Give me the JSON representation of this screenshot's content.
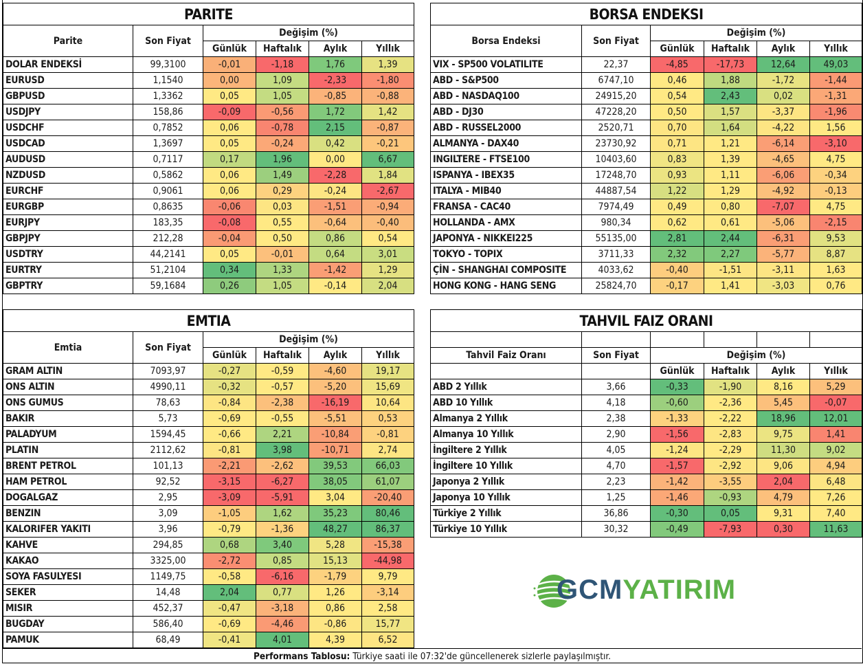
{
  "parite": {
    "title": "PARITE",
    "col_name": "Parite",
    "col_price": "Son Fiyat",
    "col_change": "Değişim (%)",
    "periods": [
      "Günlük",
      "Haftalık",
      "Aylık",
      "Yıllık"
    ],
    "rows": [
      {
        "name": "DOLAR ENDEKSİ",
        "price": "99,3100",
        "values": [
          "-0,01",
          "-1,18",
          "1,76",
          "1,39"
        ],
        "colors": [
          "#f9b078",
          "#f8696b",
          "#7fc97c",
          "#e6e282"
        ]
      },
      {
        "name": "EURUSD",
        "price": "1,1540",
        "values": [
          "0,00",
          "1,09",
          "-2,33",
          "-1,80"
        ],
        "colors": [
          "#fbb57a",
          "#c4dc82",
          "#f8696b",
          "#fa8e72"
        ]
      },
      {
        "name": "GBPUSD",
        "price": "1,3362",
        "values": [
          "0,05",
          "1,05",
          "-0,85",
          "-0,88"
        ],
        "colors": [
          "#ffe984",
          "#c4dc82",
          "#fbb37a",
          "#fbb37a"
        ]
      },
      {
        "name": "USDJPY",
        "price": "158,86",
        "values": [
          "-0,09",
          "-0,56",
          "1,72",
          "1,42"
        ],
        "colors": [
          "#f8696b",
          "#fa9a74",
          "#82c97c",
          "#e5e282"
        ]
      },
      {
        "name": "USDCHF",
        "price": "0,7852",
        "values": [
          "0,06",
          "-0,78",
          "2,15",
          "-0,87"
        ],
        "colors": [
          "#ffe984",
          "#f98570",
          "#63be7b",
          "#fbb37a"
        ]
      },
      {
        "name": "USDCAD",
        "price": "1,3697",
        "values": [
          "0,05",
          "-0,24",
          "0,42",
          "-0,21"
        ],
        "colors": [
          "#ffe984",
          "#fba877",
          "#d9e081",
          "#fdc67c"
        ]
      },
      {
        "name": "AUDUSD",
        "price": "0,7117",
        "values": [
          "0,17",
          "1,96",
          "0,00",
          "6,67"
        ],
        "colors": [
          "#c1da80",
          "#63be7b",
          "#ffe984",
          "#63be7b"
        ]
      },
      {
        "name": "NZDUSD",
        "price": "0,5862",
        "values": [
          "0,06",
          "1,49",
          "-2,28",
          "1,84"
        ],
        "colors": [
          "#ffe984",
          "#9ccf7e",
          "#f8696b",
          "#e1e282"
        ]
      },
      {
        "name": "EURCHF",
        "price": "0,9061",
        "values": [
          "0,06",
          "0,29",
          "-0,24",
          "-2,67"
        ],
        "colors": [
          "#ffe984",
          "#fdd27f",
          "#fde583",
          "#f8696b"
        ]
      },
      {
        "name": "EURGBP",
        "price": "0,8635",
        "values": [
          "-0,06",
          "0,03",
          "-1,51",
          "-0,94"
        ],
        "colors": [
          "#f98770",
          "#fde583",
          "#fa9e75",
          "#fbac78"
        ]
      },
      {
        "name": "EURJPY",
        "price": "183,35",
        "values": [
          "-0,08",
          "0,55",
          "-0,64",
          "-0,40"
        ],
        "colors": [
          "#f8696b",
          "#ffe984",
          "#fcc07c",
          "#fbbd7b"
        ]
      },
      {
        "name": "GBPJPY",
        "price": "212,28",
        "values": [
          "-0,04",
          "0,50",
          "0,86",
          "0,54"
        ],
        "colors": [
          "#fa9a74",
          "#ffe984",
          "#c4dc82",
          "#ffe984"
        ]
      },
      {
        "name": "USDTRY",
        "price": "44,2141",
        "values": [
          "0,05",
          "-0,01",
          "0,64",
          "3,01"
        ],
        "colors": [
          "#ffe984",
          "#fcc07c",
          "#c4dc82",
          "#c9dd81"
        ]
      },
      {
        "name": "EURTRY",
        "price": "51,2104",
        "values": [
          "0,34",
          "1,33",
          "-1,42",
          "1,29"
        ],
        "colors": [
          "#63be7b",
          "#aed580",
          "#fa9e75",
          "#e6e282"
        ]
      },
      {
        "name": "GBPTRY",
        "price": "59,1684",
        "values": [
          "0,26",
          "1,05",
          "-0,14",
          "2,04"
        ],
        "colors": [
          "#8ecb7d",
          "#c4dc82",
          "#ffe984",
          "#d7df81"
        ]
      }
    ]
  },
  "borsa": {
    "title": "BORSA ENDEKSI",
    "col_name": "Borsa Endeksi",
    "col_price": "Son Fiyat",
    "col_change": "Değişim (%)",
    "periods": [
      "Günlük",
      "Haftalık",
      "Aylık",
      "Yıllık"
    ],
    "rows": [
      {
        "name": "VIX  - SP500 VOLATILITE",
        "price": "22,37",
        "values": [
          "-4,85",
          "-17,73",
          "12,64",
          "49,03"
        ],
        "colors": [
          "#f8696b",
          "#f8696b",
          "#63be7b",
          "#63be7b"
        ]
      },
      {
        "name": "ABD - S&P500",
        "price": "6747,10",
        "values": [
          "0,46",
          "1,88",
          "-1,72",
          "-1,44"
        ],
        "colors": [
          "#ffe984",
          "#bfda80",
          "#e8e382",
          "#fa9a74"
        ]
      },
      {
        "name": "ABD - NASDAQ100",
        "price": "24915,20",
        "values": [
          "0,54",
          "2,43",
          "0,02",
          "-1,31"
        ],
        "colors": [
          "#ffe984",
          "#63be7b",
          "#d9e081",
          "#fba877"
        ]
      },
      {
        "name": "ABD - DJ30",
        "price": "47228,20",
        "values": [
          "0,50",
          "1,57",
          "-3,37",
          "-1,96"
        ],
        "colors": [
          "#ffe984",
          "#dbe081",
          "#fde583",
          "#f98a71"
        ]
      },
      {
        "name": "ABD - RUSSEL2000",
        "price": "2520,71",
        "values": [
          "0,70",
          "1,64",
          "-4,22",
          "1,56"
        ],
        "colors": [
          "#fde583",
          "#d3de81",
          "#fde583",
          "#ffe984"
        ]
      },
      {
        "name": "ALMANYA - DAX40",
        "price": "23730,92",
        "values": [
          "0,71",
          "1,21",
          "-6,14",
          "-3,10"
        ],
        "colors": [
          "#fde583",
          "#ffe984",
          "#fa9e75",
          "#f8696b"
        ]
      },
      {
        "name": "INGILTERE - FTSE100",
        "price": "10403,60",
        "values": [
          "0,83",
          "1,39",
          "-4,65",
          "4,75"
        ],
        "colors": [
          "#f0e583",
          "#ffe984",
          "#fcc07c",
          "#ffe984"
        ]
      },
      {
        "name": "ISPANYA - IBEX35",
        "price": "17248,70",
        "values": [
          "0,93",
          "1,11",
          "-6,06",
          "-0,34"
        ],
        "colors": [
          "#ebe482",
          "#ffe984",
          "#fa9e75",
          "#fdd27f"
        ]
      },
      {
        "name": "ITALYA - MIB40",
        "price": "44887,54",
        "values": [
          "1,22",
          "1,29",
          "-4,92",
          "-0,13"
        ],
        "colors": [
          "#d7df81",
          "#ffe984",
          "#fcc07c",
          "#fdcd7e"
        ]
      },
      {
        "name": "FRANSA - CAC40",
        "price": "7974,49",
        "values": [
          "0,49",
          "0,80",
          "-7,07",
          "4,75"
        ],
        "colors": [
          "#ffe984",
          "#ffe984",
          "#f8696b",
          "#ffe984"
        ]
      },
      {
        "name": "HOLLANDA - AMX",
        "price": "980,34",
        "values": [
          "0,62",
          "0,61",
          "-5,06",
          "-2,15"
        ],
        "colors": [
          "#ffe984",
          "#ffe984",
          "#fcc07c",
          "#f98570"
        ]
      },
      {
        "name": "JAPONYA - NIKKEI225",
        "price": "55135,00",
        "values": [
          "2,81",
          "2,44",
          "-6,31",
          "9,53"
        ],
        "colors": [
          "#63be7b",
          "#63be7b",
          "#fa9e75",
          "#e1e282"
        ]
      },
      {
        "name": "TOKYO - TOPIX",
        "price": "3711,33",
        "values": [
          "2,32",
          "2,27",
          "-5,77",
          "8,87"
        ],
        "colors": [
          "#82c97c",
          "#7fc97c",
          "#fbb37a",
          "#e6e282"
        ]
      },
      {
        "name": "ÇİN - SHANGHAI COMPOSITE",
        "price": "4033,62",
        "values": [
          "-0,40",
          "-1,51",
          "-3,11",
          "1,63"
        ],
        "colors": [
          "#fdcd7e",
          "#fde583",
          "#fde583",
          "#ffe984"
        ]
      },
      {
        "name": "HONG KONG - HANG SENG",
        "price": "25824,70",
        "values": [
          "-0,17",
          "1,41",
          "-3,03",
          "0,76"
        ],
        "colors": [
          "#fdd27f",
          "#ffe984",
          "#f0e583",
          "#ffe984"
        ]
      }
    ]
  },
  "emtia": {
    "title": "EMTIA",
    "col_name": "Emtia",
    "col_price": "Son Fiyat",
    "col_change": "Değişim (%)",
    "periods": [
      "Günlük",
      "Haftalık",
      "Aylık",
      "Yıllık"
    ],
    "rows": [
      {
        "name": "GRAM ALTIN",
        "price": "7093,97",
        "values": [
          "-0,27",
          "-0,59",
          "-4,60",
          "19,17"
        ],
        "colors": [
          "#e6e282",
          "#ffe984",
          "#fcc07c",
          "#e6e282"
        ]
      },
      {
        "name": "ONS ALTIN",
        "price": "4990,11",
        "values": [
          "-0,32",
          "-0,57",
          "-5,20",
          "15,69"
        ],
        "colors": [
          "#e6e282",
          "#ffe984",
          "#fcc07c",
          "#f0e583"
        ]
      },
      {
        "name": "ONS GUMUS",
        "price": "78,63",
        "values": [
          "-0,84",
          "-2,38",
          "-16,19",
          "10,64"
        ],
        "colors": [
          "#fde583",
          "#fcc07c",
          "#f8696b",
          "#fde583"
        ]
      },
      {
        "name": "BAKIR",
        "price": "5,73",
        "values": [
          "-0,69",
          "-0,55",
          "-5,51",
          "0,53"
        ],
        "colors": [
          "#ffe984",
          "#ffe984",
          "#fcc07c",
          "#fdd27f"
        ]
      },
      {
        "name": "PALADYUM",
        "price": "1594,45",
        "values": [
          "-0,66",
          "2,21",
          "-10,84",
          "-0,81"
        ],
        "colors": [
          "#ffe984",
          "#aed580",
          "#fa9e75",
          "#fdd27f"
        ]
      },
      {
        "name": "PLATIN",
        "price": "2112,62",
        "values": [
          "-0,81",
          "3,98",
          "-10,71",
          "2,74"
        ],
        "colors": [
          "#fde583",
          "#63be7b",
          "#fa9e75",
          "#fde583"
        ]
      },
      {
        "name": "BRENT PETROL",
        "price": "101,13",
        "values": [
          "-2,21",
          "-2,62",
          "39,53",
          "66,03"
        ],
        "colors": [
          "#fa9a74",
          "#fcc07c",
          "#82c97c",
          "#82c97c"
        ]
      },
      {
        "name": "HAM PETROL",
        "price": "92,52",
        "values": [
          "-3,15",
          "-6,27",
          "38,05",
          "61,07"
        ],
        "colors": [
          "#f8696b",
          "#f8696b",
          "#82c97c",
          "#9ccf7e"
        ]
      },
      {
        "name": "DOGALGAZ",
        "price": "2,95",
        "values": [
          "-3,09",
          "-5,91",
          "3,04",
          "-20,40"
        ],
        "colors": [
          "#f8696b",
          "#f8696b",
          "#ffe984",
          "#fa9e75"
        ]
      },
      {
        "name": "BENZIN",
        "price": "3,09",
        "values": [
          "-1,05",
          "1,62",
          "35,23",
          "80,46"
        ],
        "colors": [
          "#fdcd7e",
          "#aed580",
          "#7fc97c",
          "#63be7b"
        ]
      },
      {
        "name": "KALORIFER YAKITI",
        "price": "3,96",
        "values": [
          "-0,79",
          "-1,36",
          "48,27",
          "86,37"
        ],
        "colors": [
          "#ffe984",
          "#fdd27f",
          "#63be7b",
          "#63be7b"
        ]
      },
      {
        "name": "KAHVE",
        "price": "294,85",
        "values": [
          "0,68",
          "3,40",
          "5,28",
          "-15,38"
        ],
        "colors": [
          "#aed580",
          "#7fc97c",
          "#f0e583",
          "#fa9e75"
        ]
      },
      {
        "name": "KAKAO",
        "price": "3325,00",
        "values": [
          "-2,72",
          "0,85",
          "15,13",
          "-44,98"
        ],
        "colors": [
          "#fa8e72",
          "#c4dc82",
          "#e1e282",
          "#f8696b"
        ]
      },
      {
        "name": "SOYA FASULYESI",
        "price": "1149,75",
        "values": [
          "-0,58",
          "-6,16",
          "-1,79",
          "9,79"
        ],
        "colors": [
          "#ffe984",
          "#f8696b",
          "#fdd27f",
          "#ffe984"
        ]
      },
      {
        "name": "SEKER",
        "price": "14,48",
        "values": [
          "2,04",
          "0,77",
          "1,26",
          "-3,14"
        ],
        "colors": [
          "#63be7b",
          "#d9e081",
          "#ffe984",
          "#fdcd7e"
        ]
      },
      {
        "name": "MISIR",
        "price": "452,37",
        "values": [
          "-0,47",
          "-3,18",
          "0,86",
          "2,58"
        ],
        "colors": [
          "#f0e583",
          "#fbb37a",
          "#ffe984",
          "#ffe984"
        ]
      },
      {
        "name": "BUGDAY",
        "price": "586,40",
        "values": [
          "-0,69",
          "-4,46",
          "-0,86",
          "15,77"
        ],
        "colors": [
          "#ffe984",
          "#fa9a74",
          "#fde583",
          "#f0e583"
        ]
      },
      {
        "name": "PAMUK",
        "price": "68,49",
        "values": [
          "-0,41",
          "4,01",
          "4,39",
          "6,52"
        ],
        "colors": [
          "#f0e583",
          "#63be7b",
          "#ffe984",
          "#fde583"
        ]
      }
    ]
  },
  "tahvil": {
    "title": "TAHVIL FAIZ ORANI",
    "col_name": "Tahvil Faiz Oranı",
    "col_price": "Son Fiyat",
    "col_change": "Değişim (%)",
    "periods": [
      "Günlük",
      "Haftalık",
      "Aylık",
      "Yıllık"
    ],
    "rows": [
      {
        "name": "ABD 2 Yıllık",
        "price": "3,66",
        "values": [
          "-0,33",
          "-1,90",
          "8,16",
          "5,29"
        ],
        "colors": [
          "#63be7b",
          "#e1e282",
          "#ffe984",
          "#fcc07c"
        ]
      },
      {
        "name": "ABD 10 Yıllık",
        "price": "4,18",
        "values": [
          "-0,60",
          "-2,36",
          "5,45",
          "-0,07"
        ],
        "colors": [
          "#9ccf7e",
          "#ffe984",
          "#fcc07c",
          "#f8696b"
        ]
      },
      {
        "name": "Almanya 2 Yıllık",
        "price": "2,38",
        "values": [
          "-1,33",
          "-2,22",
          "18,96",
          "12,01"
        ],
        "colors": [
          "#fdd27f",
          "#ffe984",
          "#63be7b",
          "#63be7b"
        ]
      },
      {
        "name": "Almanya 10 Yıllık",
        "price": "2,90",
        "values": [
          "-1,56",
          "-2,83",
          "9,75",
          "1,41"
        ],
        "colors": [
          "#f8696b",
          "#fde583",
          "#ebe482",
          "#f98570"
        ]
      },
      {
        "name": "İngiltere 2 Yıllık",
        "price": "4,05",
        "values": [
          "-1,24",
          "-2,29",
          "11,30",
          "9,02"
        ],
        "colors": [
          "#fde583",
          "#ffe984",
          "#cfdd81",
          "#c4dc82"
        ]
      },
      {
        "name": "İngiltere 10 Yıllık",
        "price": "4,70",
        "values": [
          "-1,57",
          "-2,92",
          "9,06",
          "4,94"
        ],
        "colors": [
          "#f8696b",
          "#fde583",
          "#fde583",
          "#fdcd7e"
        ]
      },
      {
        "name": "Japonya 2 Yıllık",
        "price": "2,23",
        "values": [
          "-1,42",
          "-3,55",
          "2,04",
          "6,48"
        ],
        "colors": [
          "#fbb37a",
          "#fdcd7e",
          "#f8696b",
          "#fde583"
        ]
      },
      {
        "name": "Japonya 10 Yıllık",
        "price": "1,25",
        "values": [
          "-1,46",
          "-0,93",
          "4,79",
          "7,26"
        ],
        "colors": [
          "#fba877",
          "#aed580",
          "#fcc07c",
          "#ffe984"
        ]
      },
      {
        "name": "Türkiye 2 Yıllık",
        "price": "36,86",
        "values": [
          "-0,30",
          "0,05",
          "9,31",
          "7,40"
        ],
        "colors": [
          "#63be7b",
          "#63be7b",
          "#ffe984",
          "#ffe984"
        ]
      },
      {
        "name": "Türkiye 10 Yıllık",
        "price": "30,32",
        "values": [
          "-0,49",
          "-7,93",
          "0,30",
          "11,63"
        ],
        "colors": [
          "#82c97c",
          "#f8696b",
          "#f8696b",
          "#63be7b"
        ]
      }
    ]
  },
  "logo": {
    "part1": "GCM",
    "part2": "YATIRIM"
  },
  "footer": {
    "label": "Performans Tablosu:",
    "text": " Türkiye saati ile 07:32'de güncellenerek sizlerle paylaşılmıştır."
  }
}
